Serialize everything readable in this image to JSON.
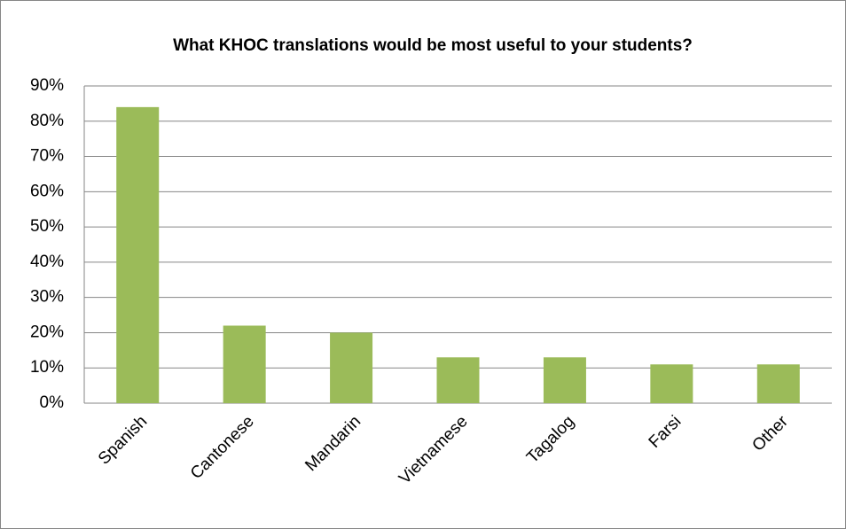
{
  "chart_data": {
    "type": "bar",
    "title": "What KHOC translations would be most useful to your students?",
    "categories": [
      "Spanish",
      "Cantonese",
      "Mandarin",
      "Vietnamese",
      "Tagalog",
      "Farsi",
      "Other"
    ],
    "values": [
      84,
      22,
      20,
      13,
      13,
      11,
      11
    ],
    "color": "#9bbb59",
    "ylim": [
      0,
      90
    ],
    "yticks": [
      {
        "value": 0,
        "label": "0%"
      },
      {
        "value": 10,
        "label": "10%"
      },
      {
        "value": 20,
        "label": "20%"
      },
      {
        "value": 30,
        "label": "30%"
      },
      {
        "value": 40,
        "label": "40%"
      },
      {
        "value": 50,
        "label": "50%"
      },
      {
        "value": 60,
        "label": "60%"
      },
      {
        "value": 70,
        "label": "70%"
      },
      {
        "value": 80,
        "label": "80%"
      },
      {
        "value": 90,
        "label": "90%"
      }
    ],
    "grid": true
  }
}
